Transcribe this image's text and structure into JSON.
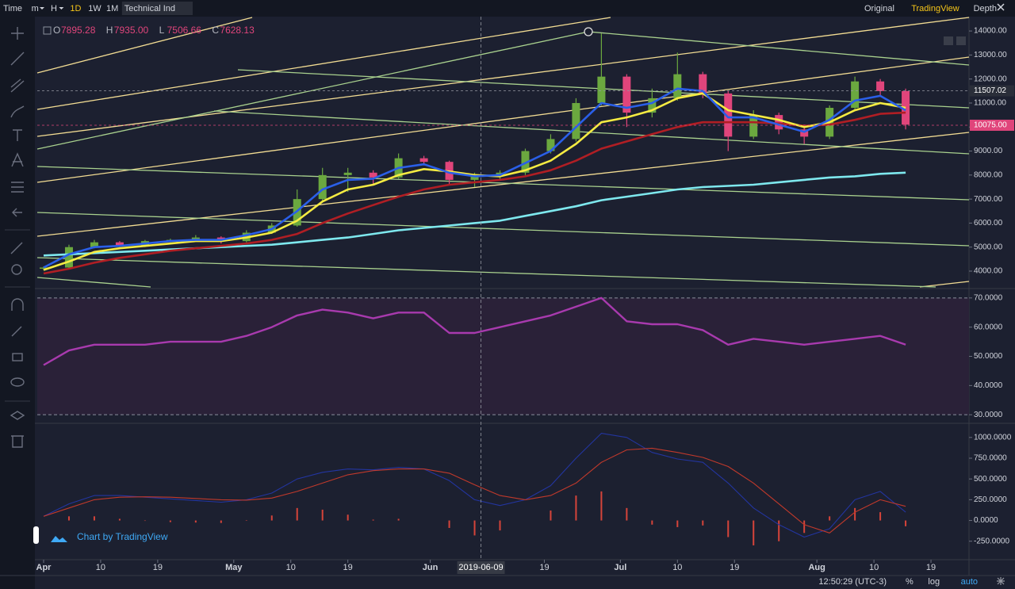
{
  "toolbar": [
    "Time",
    "m",
    "H",
    "1D",
    "1W",
    "1M",
    "Technical Ind"
  ],
  "views": [
    "Original",
    "TradingView",
    "Depth"
  ],
  "active_interval": "1D",
  "active_view": "TradingView",
  "ohlc_legend": [
    {
      "key": "O",
      "value": "7895.28"
    },
    {
      "key": "H",
      "value": "7935.00"
    },
    {
      "key": "L",
      "value": "7506.66"
    },
    {
      "key": "C",
      "value": "7628.13"
    }
  ],
  "watermark": "Chart by TradingView",
  "clock": "12:50:29 (UTC-3)",
  "scale_buttons": [
    "%",
    "log",
    "auto"
  ],
  "crosshair_x": "2019-06-09",
  "xlim": [
    "2019-03-31",
    "2019-08-25"
  ],
  "xticks": [
    {
      "value": "2019-04-01",
      "label": "Apr"
    },
    {
      "value": "2019-04-10",
      "label": "10"
    },
    {
      "value": "2019-04-19",
      "label": "19"
    },
    {
      "value": "2019-05-01",
      "label": "May"
    },
    {
      "value": "2019-05-10",
      "label": "10"
    },
    {
      "value": "2019-05-19",
      "label": "19"
    },
    {
      "value": "2019-06-01",
      "label": "Jun"
    },
    {
      "value": "2019-06-19",
      "label": "19"
    },
    {
      "value": "2019-07-01",
      "label": "Jul"
    },
    {
      "value": "2019-07-10",
      "label": "10"
    },
    {
      "value": "2019-07-19",
      "label": "19"
    },
    {
      "value": "2019-08-01",
      "label": "Aug"
    },
    {
      "value": "2019-08-10",
      "label": "10"
    },
    {
      "value": "2019-08-19",
      "label": "19"
    }
  ],
  "chart_data": [
    {
      "type": "candlestick",
      "x": [
        "2019-04-01",
        "2019-04-05",
        "2019-04-09",
        "2019-04-13",
        "2019-04-17",
        "2019-04-21",
        "2019-04-25",
        "2019-04-29",
        "2019-05-03",
        "2019-05-07",
        "2019-05-11",
        "2019-05-15",
        "2019-05-19",
        "2019-05-23",
        "2019-05-27",
        "2019-05-31",
        "2019-06-04",
        "2019-06-08",
        "2019-06-12",
        "2019-06-16",
        "2019-06-20",
        "2019-06-24",
        "2019-06-28",
        "2019-07-02",
        "2019-07-06",
        "2019-07-10",
        "2019-07-14",
        "2019-07-18",
        "2019-07-22",
        "2019-07-26",
        "2019-07-30",
        "2019-08-03",
        "2019-08-07",
        "2019-08-11",
        "2019-08-15"
      ],
      "open": [
        4100,
        4150,
        5000,
        5200,
        5050,
        5250,
        5300,
        5400,
        5250,
        5600,
        5900,
        7000,
        8000,
        8100,
        7900,
        8700,
        8550,
        7800,
        7950,
        8100,
        9000,
        9500,
        11000,
        12100,
        10600,
        11200,
        12200,
        11400,
        9600,
        10500,
        9900,
        9600,
        10800,
        11900,
        11500
      ],
      "high": [
        4200,
        5100,
        5300,
        5250,
        5300,
        5350,
        5500,
        5450,
        5700,
        6000,
        7400,
        8300,
        8300,
        8200,
        8900,
        8800,
        8600,
        8100,
        8200,
        9100,
        9700,
        11200,
        13900,
        12200,
        11600,
        13100,
        12300,
        11500,
        10700,
        10600,
        10100,
        10900,
        12100,
        12000,
        11600
      ],
      "low": [
        4050,
        4100,
        4950,
        5000,
        5000,
        5200,
        5250,
        5150,
        5200,
        5550,
        5850,
        6900,
        7300,
        7600,
        7850,
        8400,
        7600,
        7500,
        7800,
        8000,
        8900,
        9400,
        10900,
        10000,
        10400,
        11100,
        11200,
        9000,
        9500,
        9700,
        9300,
        9500,
        10700,
        11300,
        9900
      ],
      "close": [
        4150,
        5000,
        5200,
        5050,
        5250,
        5300,
        5400,
        5250,
        5600,
        5900,
        7000,
        8000,
        8100,
        7900,
        8700,
        8550,
        7800,
        7950,
        8100,
        9000,
        9500,
        11000,
        12100,
        10600,
        11200,
        12200,
        11400,
        9600,
        10500,
        9900,
        9600,
        10800,
        11900,
        11500,
        10100
      ],
      "up_color": "#6ba83f",
      "down_color": "#e0457b",
      "series": [
        {
          "color": "#7ee8ee",
          "values": [
            4650,
            4700,
            4750,
            4800,
            4850,
            4900,
            4950,
            5000,
            5050,
            5100,
            5200,
            5300,
            5400,
            5550,
            5700,
            5800,
            5900,
            6000,
            6100,
            6300,
            6500,
            6700,
            6950,
            7100,
            7250,
            7400,
            7500,
            7550,
            7600,
            7700,
            7800,
            7900,
            7950,
            8050,
            8100
          ]
        },
        {
          "color": "#b01e24",
          "values": [
            3900,
            4100,
            4350,
            4550,
            4700,
            4850,
            4950,
            5050,
            5150,
            5300,
            5550,
            6000,
            6400,
            6750,
            7100,
            7400,
            7600,
            7700,
            7800,
            7950,
            8200,
            8600,
            9100,
            9400,
            9700,
            10000,
            10200,
            10200,
            10200,
            10150,
            10050,
            10100,
            10300,
            10550,
            10600
          ]
        },
        {
          "color": "#f5eb42",
          "values": [
            4050,
            4400,
            4800,
            4950,
            5050,
            5150,
            5250,
            5250,
            5400,
            5600,
            6100,
            6900,
            7400,
            7600,
            8000,
            8250,
            8150,
            8000,
            7950,
            8200,
            8600,
            9300,
            10200,
            10400,
            10700,
            11200,
            11400,
            10700,
            10500,
            10300,
            10000,
            10200,
            10700,
            11000,
            10800
          ]
        },
        {
          "color": "#2a5fe8",
          "values": [
            4150,
            4700,
            5000,
            5050,
            5150,
            5250,
            5300,
            5300,
            5500,
            5750,
            6500,
            7400,
            7800,
            7850,
            8300,
            8450,
            8100,
            7950,
            8000,
            8500,
            9000,
            10000,
            11000,
            10800,
            11000,
            11600,
            11500,
            10400,
            10400,
            10100,
            9800,
            10300,
            11100,
            11300,
            10700
          ]
        }
      ],
      "price_lines": [
        {
          "value": 11507.02,
          "label": "11507.02",
          "color": "#2a2e39"
        },
        {
          "value": 10075,
          "label": "10075.00",
          "color": "#e0457b"
        }
      ],
      "ylim": [
        3340,
        14300
      ],
      "yticks": [
        {
          "value": 4000,
          "label": "4000.00"
        },
        {
          "value": 5000,
          "label": "5000.00"
        },
        {
          "value": 6000,
          "label": "6000.00"
        },
        {
          "value": 7000,
          "label": "7000.00"
        },
        {
          "value": 8000,
          "label": "8000.00"
        },
        {
          "value": 9000,
          "label": "9000.00"
        },
        {
          "value": 10000,
          "label": "10000.00"
        },
        {
          "value": 11000,
          "label": "11000.00"
        },
        {
          "value": 12000,
          "label": "12000.00"
        },
        {
          "value": 13000,
          "label": "13000.00"
        },
        {
          "value": 14000,
          "label": "14000.00"
        }
      ]
    },
    {
      "type": "line",
      "x": [
        "2019-04-01",
        "2019-04-05",
        "2019-04-09",
        "2019-04-13",
        "2019-04-17",
        "2019-04-21",
        "2019-04-25",
        "2019-04-29",
        "2019-05-03",
        "2019-05-07",
        "2019-05-11",
        "2019-05-15",
        "2019-05-19",
        "2019-05-23",
        "2019-05-27",
        "2019-05-31",
        "2019-06-04",
        "2019-06-08",
        "2019-06-12",
        "2019-06-16",
        "2019-06-20",
        "2019-06-24",
        "2019-06-28",
        "2019-07-02",
        "2019-07-06",
        "2019-07-10",
        "2019-07-14",
        "2019-07-18",
        "2019-07-22",
        "2019-07-26",
        "2019-07-30",
        "2019-08-03",
        "2019-08-07",
        "2019-08-11",
        "2019-08-15"
      ],
      "series": [
        {
          "color": "#a83aae",
          "values": [
            47,
            52,
            54,
            54,
            54,
            55,
            55,
            55,
            57,
            60,
            64,
            66,
            65,
            63,
            65,
            65,
            58,
            58,
            60,
            62,
            64,
            67,
            70,
            62,
            61,
            61,
            59,
            54,
            56,
            55,
            54,
            55,
            56,
            57,
            54
          ]
        }
      ],
      "band_color": "#2a2138",
      "ylim": [
        27.6,
        72.4
      ],
      "yticks": [
        {
          "value": 30,
          "label": "30.0000"
        },
        {
          "value": 40,
          "label": "40.0000"
        },
        {
          "value": 50,
          "label": "50.0000"
        },
        {
          "value": 60,
          "label": "60.0000"
        },
        {
          "value": 70,
          "label": "70.0000"
        }
      ]
    },
    {
      "type": "line",
      "x": [
        "2019-04-01",
        "2019-04-05",
        "2019-04-09",
        "2019-04-13",
        "2019-04-17",
        "2019-04-21",
        "2019-04-25",
        "2019-04-29",
        "2019-05-03",
        "2019-05-07",
        "2019-05-11",
        "2019-05-15",
        "2019-05-19",
        "2019-05-23",
        "2019-05-27",
        "2019-05-31",
        "2019-06-04",
        "2019-06-08",
        "2019-06-12",
        "2019-06-16",
        "2019-06-20",
        "2019-06-24",
        "2019-06-28",
        "2019-07-02",
        "2019-07-06",
        "2019-07-10",
        "2019-07-14",
        "2019-07-18",
        "2019-07-22",
        "2019-07-26",
        "2019-07-30",
        "2019-08-03",
        "2019-08-07",
        "2019-08-11",
        "2019-08-15"
      ],
      "series": [
        {
          "type": "bar",
          "color": "#d6443a",
          "values": [
            0,
            50,
            50,
            20,
            -5,
            -20,
            -25,
            -30,
            5,
            60,
            150,
            130,
            70,
            10,
            20,
            0,
            -90,
            -180,
            -120,
            0,
            120,
            300,
            350,
            150,
            -50,
            -80,
            -60,
            -200,
            -300,
            -250,
            -150,
            50,
            150,
            100,
            -70
          ]
        },
        {
          "color": "#2335a0",
          "values": [
            50,
            200,
            300,
            300,
            280,
            260,
            240,
            220,
            250,
            330,
            500,
            580,
            620,
            610,
            640,
            620,
            480,
            250,
            180,
            250,
            420,
            750,
            1050,
            1000,
            820,
            740,
            700,
            450,
            150,
            -50,
            -200,
            -100,
            250,
            350,
            100
          ]
        },
        {
          "color": "#c0392b",
          "values": [
            50,
            150,
            250,
            280,
            285,
            280,
            265,
            250,
            245,
            270,
            350,
            450,
            550,
            600,
            620,
            620,
            570,
            430,
            300,
            250,
            300,
            450,
            700,
            850,
            870,
            820,
            760,
            650,
            450,
            200,
            -50,
            -150,
            100,
            250,
            170
          ]
        }
      ],
      "ylim": [
        -453,
        1151
      ],
      "yticks": [
        {
          "value": -250,
          "label": "-250.0000"
        },
        {
          "value": 0,
          "label": "0.0000"
        },
        {
          "value": 250,
          "label": "250.0000"
        },
        {
          "value": 500,
          "label": "500.0000"
        },
        {
          "value": 750,
          "label": "750.0000"
        },
        {
          "value": 1000,
          "label": "1000.0000"
        }
      ]
    }
  ]
}
